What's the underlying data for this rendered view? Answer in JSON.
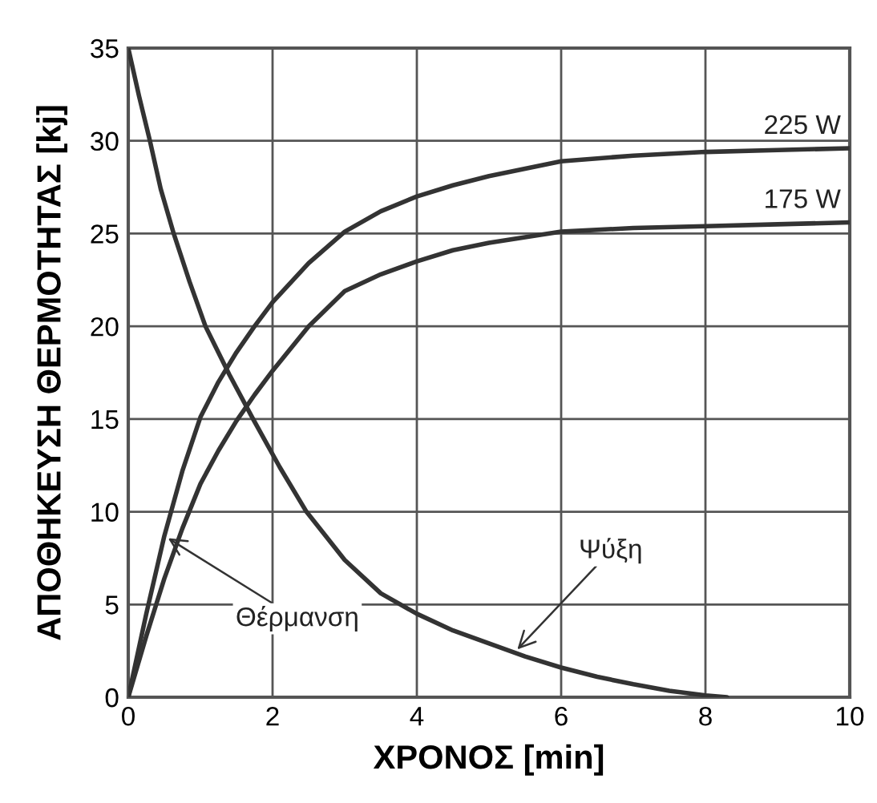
{
  "chart_data": {
    "type": "line",
    "xlabel": "ΧΡΟΝΟΣ [min]",
    "ylabel": "ΑΠΟΘΗΚΕΥΣΗ ΘΕΡΜΟΤΗΤΑΣ [kj]",
    "xlim": [
      0,
      10
    ],
    "ylim": [
      0,
      35
    ],
    "xticks": [
      0,
      2,
      4,
      6,
      8,
      10
    ],
    "yticks": [
      0,
      5,
      10,
      15,
      20,
      25,
      30,
      35
    ],
    "grid": true,
    "marker": "none",
    "line_style": "solid",
    "series": [
      {
        "name": "225 W",
        "color": "#333333",
        "x": [
          0,
          0.25,
          0.5,
          0.75,
          1,
          1.25,
          1.5,
          1.75,
          2,
          2.5,
          3,
          3.5,
          4,
          4.5,
          5,
          6,
          7,
          8,
          9,
          10
        ],
        "values": [
          0,
          4.5,
          8.7,
          12.2,
          15.1,
          17.0,
          18.6,
          20.0,
          21.3,
          23.4,
          25.1,
          26.2,
          27.0,
          27.6,
          28.1,
          28.9,
          29.2,
          29.4,
          29.5,
          29.6
        ]
      },
      {
        "name": "175 W",
        "color": "#333333",
        "x": [
          0,
          0.25,
          0.5,
          0.75,
          1,
          1.25,
          1.5,
          1.75,
          2,
          2.5,
          3,
          3.5,
          4,
          4.5,
          5,
          6,
          7,
          8,
          9,
          10
        ],
        "values": [
          0,
          3.3,
          6.4,
          9.1,
          11.5,
          13.3,
          14.9,
          16.3,
          17.6,
          20.0,
          21.9,
          22.8,
          23.5,
          24.1,
          24.5,
          25.1,
          25.3,
          25.4,
          25.5,
          25.6
        ]
      },
      {
        "color": "#333333",
        "x": [
          0,
          0.15,
          0.3,
          0.45,
          0.63,
          0.85,
          1.07,
          1.4,
          1.73,
          2.1,
          2.47,
          3,
          3.5,
          4,
          4.5,
          5,
          5.5,
          6,
          6.5,
          7,
          7.5,
          8,
          8.3
        ],
        "values": [
          35,
          32.4,
          30,
          27.4,
          25,
          22.4,
          20,
          17.4,
          15,
          12.4,
          10,
          7.4,
          5.6,
          4.5,
          3.6,
          2.9,
          2.2,
          1.6,
          1.1,
          0.7,
          0.35,
          0.1,
          0
        ]
      }
    ],
    "annotations": [
      {
        "text": "Θέρμανση",
        "x": 0.5,
        "y": 8.7
      },
      {
        "text": "Ψύξη",
        "x": 5.35,
        "y": 2.4
      }
    ]
  }
}
